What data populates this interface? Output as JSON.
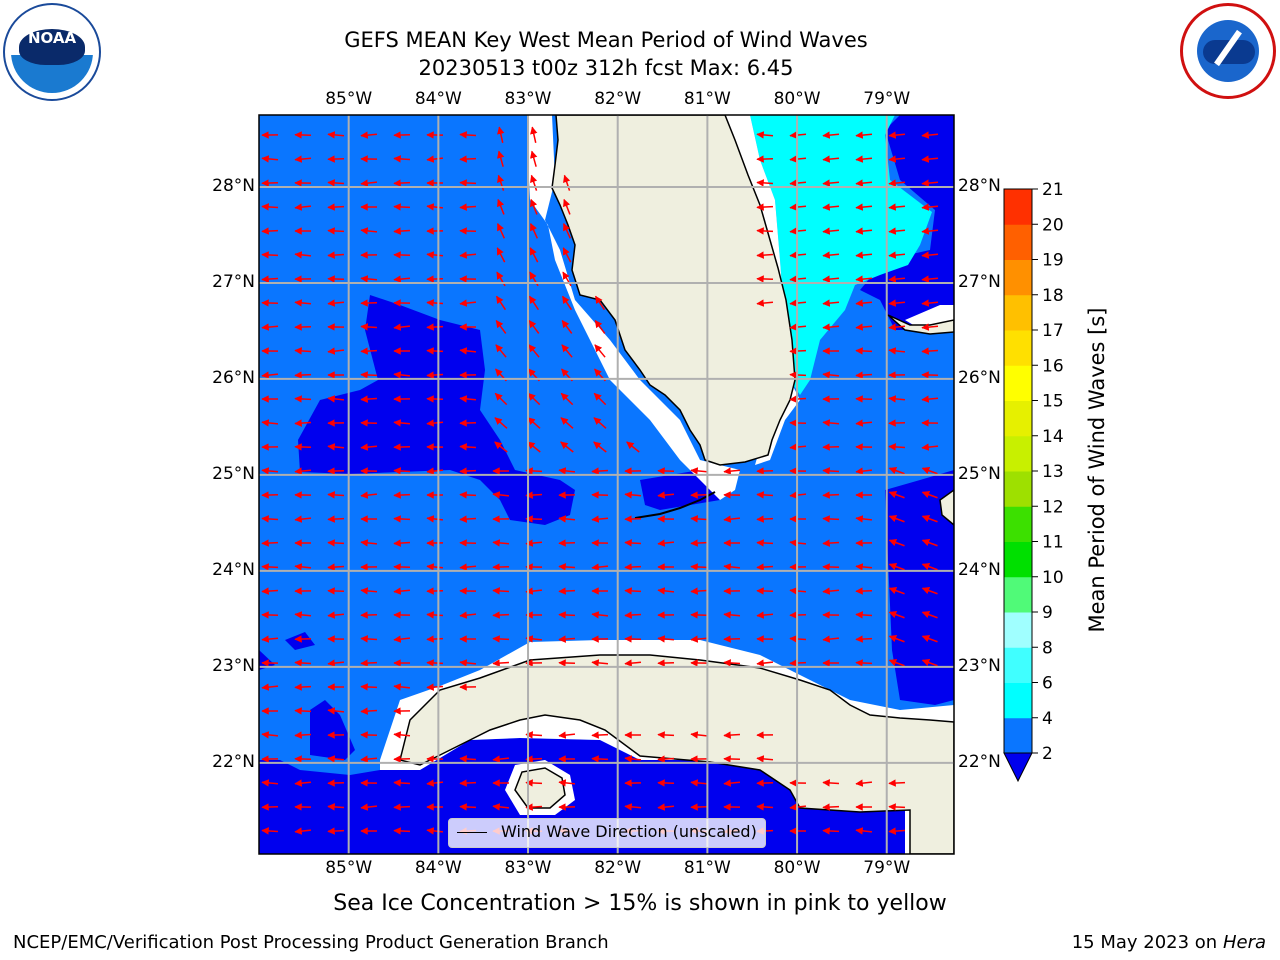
{
  "title": {
    "line1": "GEFS MEAN Key West Mean Period of Wind Waves",
    "line2": "20230513 t00z 312h fcst   Max: 6.45"
  },
  "map": {
    "lon_range": [
      -86.0,
      -78.25
    ],
    "lat_range": [
      21.05,
      28.75
    ],
    "lon_ticks": [
      "85°W",
      "84°W",
      "83°W",
      "82°W",
      "81°W",
      "80°W",
      "79°W"
    ],
    "lat_ticks": [
      "28°N",
      "27°N",
      "26°N",
      "25°N",
      "24°N",
      "23°N",
      "22°N"
    ],
    "legend_label": "Wind Wave Direction (unscaled)",
    "ocean_colors": {
      "band_2_4": "#0a76ff",
      "below_2": "#0000ee",
      "band_4_6": "#00ffff"
    },
    "land_color": "#efefdf",
    "arrow_color": "#ff0000"
  },
  "colorbar": {
    "label": "Mean Period of Wind Waves [s]",
    "levels": [
      "2",
      "4",
      "6",
      "8",
      "9",
      "10",
      "11",
      "12",
      "13",
      "14",
      "15",
      "16",
      "17",
      "18",
      "19",
      "20",
      "21"
    ],
    "colors": [
      "#0a76ff",
      "#00ffff",
      "#40ffff",
      "#a0ffff",
      "#50fa78",
      "#00e000",
      "#3ce000",
      "#9ee000",
      "#c8f000",
      "#e6f000",
      "#ffff00",
      "#ffe000",
      "#ffc000",
      "#ff9000",
      "#ff6000",
      "#ff3000",
      "#ff0000"
    ],
    "extend_color": "#0000ee"
  },
  "caption": "Sea Ice Concentration > 15% is shown in pink to yellow",
  "footer": {
    "left": "NCEP/EMC/Verification Post Processing Product Generation Branch",
    "date": "15 May 2023 on",
    "machine": "Hera"
  },
  "logos": {
    "left": {
      "text": "NOAA",
      "icon": "noaa-logo-icon"
    },
    "right": {
      "icon": "nws-logo-icon"
    }
  }
}
